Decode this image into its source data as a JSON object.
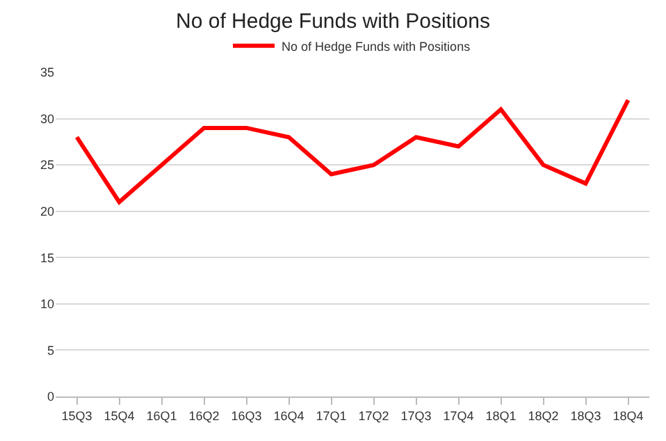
{
  "chart_data": {
    "type": "line",
    "title": "No of Hedge Funds with Positions",
    "categories": [
      "15Q3",
      "15Q4",
      "16Q1",
      "16Q2",
      "16Q3",
      "16Q4",
      "17Q1",
      "17Q2",
      "17Q3",
      "17Q4",
      "18Q1",
      "18Q2",
      "18Q3",
      "18Q4"
    ],
    "series": [
      {
        "name": "No of Hedge Funds with Positions",
        "color": "#ff0000",
        "values": [
          28,
          21,
          25,
          29,
          29,
          28,
          24,
          25,
          28,
          27,
          31,
          25,
          23,
          32
        ]
      }
    ],
    "ylim": [
      0,
      35
    ],
    "yticks": [
      0,
      5,
      10,
      15,
      20,
      25,
      30,
      35
    ],
    "grid": "y",
    "legend": "top",
    "marker": "none",
    "line_style": "solid"
  }
}
